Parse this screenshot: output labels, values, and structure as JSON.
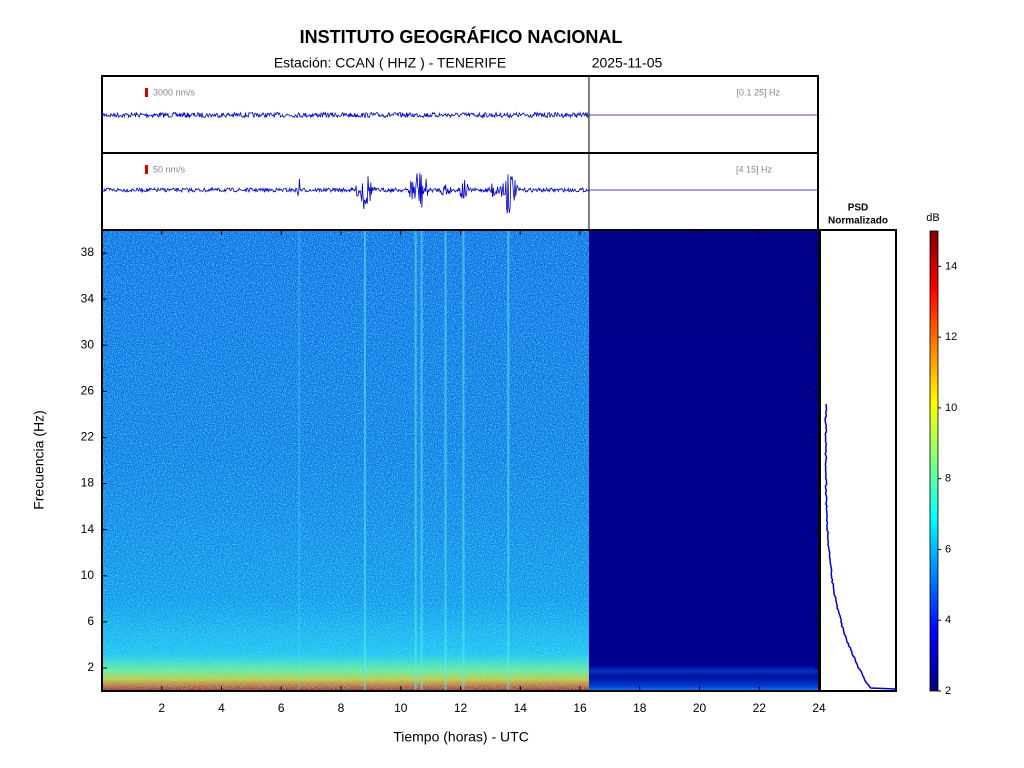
{
  "chart_data": {
    "type": "spectrogram",
    "title": "INSTITUTO GEOGRÁFICO NACIONAL",
    "station": "Estación:  CCAN ( HHZ ) - TENERIFE",
    "date": "2025-11-05",
    "traces": [
      {
        "scale": "3000 nm/s",
        "band": "[0.1 25] Hz"
      },
      {
        "scale": "50 nm/s",
        "band": "[4 15] Hz"
      }
    ],
    "xlabel": "Tiempo (horas) - UTC",
    "ylabel": "Frecuencia  (Hz)",
    "xlim": [
      0,
      24
    ],
    "xticks": [
      2,
      4,
      6,
      8,
      10,
      12,
      14,
      16,
      18,
      20,
      22,
      24
    ],
    "ylim": [
      0,
      40
    ],
    "yticks": [
      2,
      6,
      10,
      14,
      18,
      22,
      26,
      30,
      34,
      38
    ],
    "data_end": 16.3,
    "psd_title": "PSD",
    "psd_subtitle": "Normalizado",
    "colorbar": {
      "label": "dB",
      "lim": [
        2,
        15
      ],
      "ticks": [
        2,
        4,
        6,
        8,
        10,
        12,
        14
      ]
    }
  }
}
